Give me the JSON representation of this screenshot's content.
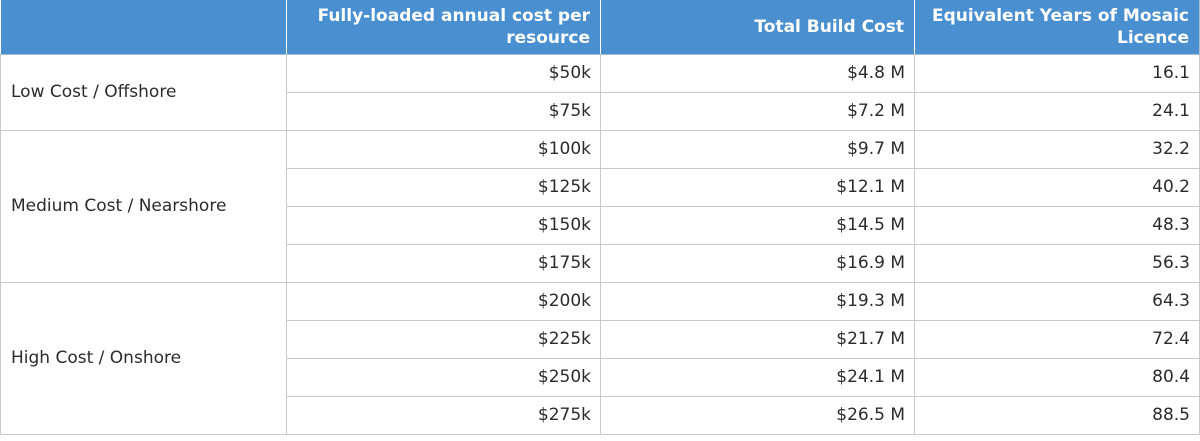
{
  "table": {
    "headers": [
      "",
      "Fully-loaded annual cost per resource",
      "Total Build Cost",
      "Equivalent Years of Mosaic Licence"
    ],
    "groups": [
      {
        "label": "Low Cost / Offshore",
        "rows": [
          {
            "cost": "$50k",
            "build": "$4.8 M",
            "years": "16.1"
          },
          {
            "cost": "$75k",
            "build": "$7.2 M",
            "years": "24.1"
          }
        ]
      },
      {
        "label": "Medium Cost / Nearshore",
        "rows": [
          {
            "cost": "$100k",
            "build": "$9.7 M",
            "years": "32.2"
          },
          {
            "cost": "$125k",
            "build": "$12.1 M",
            "years": "40.2"
          },
          {
            "cost": "$150k",
            "build": "$14.5 M",
            "years": "48.3"
          },
          {
            "cost": "$175k",
            "build": "$16.9 M",
            "years": "56.3"
          }
        ]
      },
      {
        "label": "High Cost / Onshore",
        "rows": [
          {
            "cost": "$200k",
            "build": "$19.3 M",
            "years": "64.3"
          },
          {
            "cost": "$225k",
            "build": "$21.7 M",
            "years": "72.4"
          },
          {
            "cost": "$250k",
            "build": "$24.1 M",
            "years": "80.4"
          },
          {
            "cost": "$275k",
            "build": "$26.5 M",
            "years": "88.5"
          }
        ]
      }
    ]
  },
  "colors": {
    "header_background": "#4a8fd0",
    "header_text": "#ffffff",
    "grid_line": "#c8c8c8"
  }
}
